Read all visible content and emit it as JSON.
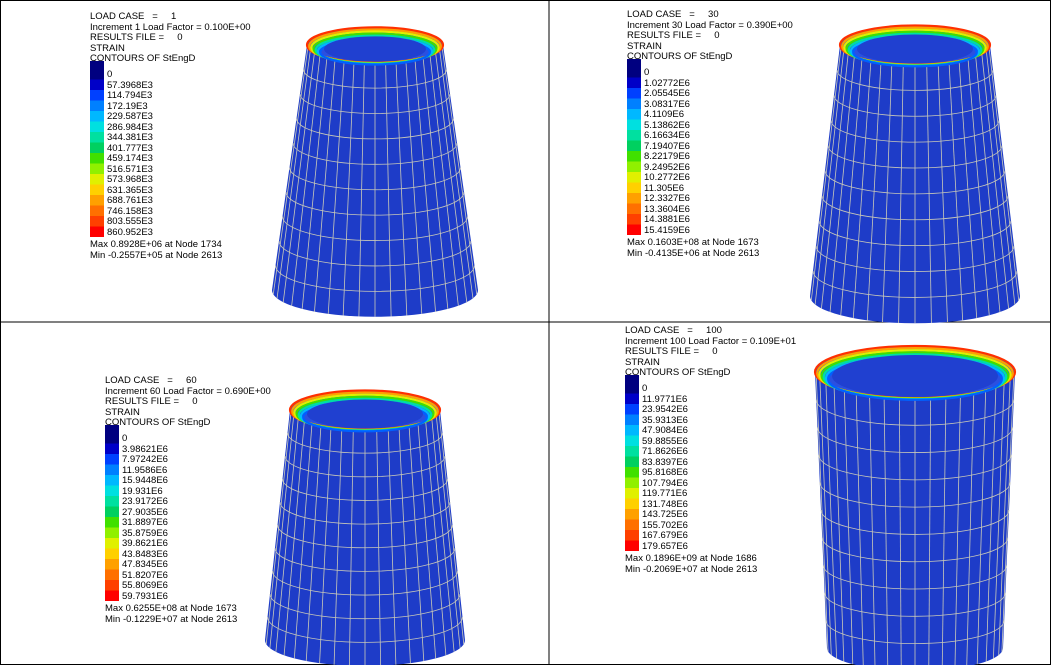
{
  "panels": [
    {
      "header": [
        "LOAD CASE   =     1",
        "Increment 1 Load Factor = 0.100E+00",
        "RESULTS FILE =     0",
        "STRAIN",
        "CONTOURS OF StEngD"
      ],
      "legend": [
        "0",
        "57.3968E3",
        "114.794E3",
        "172.19E3",
        "229.587E3",
        "286.984E3",
        "344.381E3",
        "401.777E3",
        "459.174E3",
        "516.571E3",
        "573.968E3",
        "631.365E3",
        "688.761E3",
        "746.158E3",
        "803.555E3",
        "860.952E3"
      ],
      "max": "Max 0.8928E+06 at Node 1734",
      "min": "Min -0.2557E+05 at Node 2613"
    },
    {
      "header": [
        "LOAD CASE   =     30",
        "Increment 30 Load Factor = 0.390E+00",
        "RESULTS FILE =     0",
        "STRAIN",
        "CONTOURS OF StEngD"
      ],
      "legend": [
        "0",
        "1.02772E6",
        "2.05545E6",
        "3.08317E6",
        "4.1109E6",
        "5.13862E6",
        "6.16634E6",
        "7.19407E6",
        "8.22179E6",
        "9.24952E6",
        "10.2772E6",
        "11.305E6",
        "12.3327E6",
        "13.3604E6",
        "14.3881E6",
        "15.4159E6"
      ],
      "max": "Max 0.1603E+08 at Node 1673",
      "min": "Min -0.4135E+06 at Node 2613"
    },
    {
      "header": [
        "LOAD CASE   =     60",
        "Increment 60 Load Factor = 0.690E+00",
        "RESULTS FILE =     0",
        "STRAIN",
        "CONTOURS OF StEngD"
      ],
      "legend": [
        "0",
        "3.98621E6",
        "7.97242E6",
        "11.9586E6",
        "15.9448E6",
        "19.931E6",
        "23.9172E6",
        "27.9035E6",
        "31.8897E6",
        "35.8759E6",
        "39.8621E6",
        "43.8483E6",
        "47.8345E6",
        "51.8207E6",
        "55.8069E6",
        "59.7931E6"
      ],
      "max": "Max 0.6255E+08 at Node 1673",
      "min": "Min -0.1229E+07 at Node 2613"
    },
    {
      "header": [
        "LOAD CASE   =     100",
        "Increment 100 Load Factor = 0.109E+01",
        "RESULTS FILE =     0",
        "STRAIN",
        "CONTOURS OF StEngD"
      ],
      "legend": [
        "0",
        "11.9771E6",
        "23.9542E6",
        "35.9313E6",
        "47.9084E6",
        "59.8855E6",
        "71.8626E6",
        "83.8397E6",
        "95.8168E6",
        "107.794E6",
        "119.771E6",
        "131.748E6",
        "143.725E6",
        "155.702E6",
        "167.679E6",
        "179.657E6"
      ],
      "max": "Max 0.1896E+09 at Node 1686",
      "min": "Min -0.2069E+07 at Node 2613"
    }
  ]
}
